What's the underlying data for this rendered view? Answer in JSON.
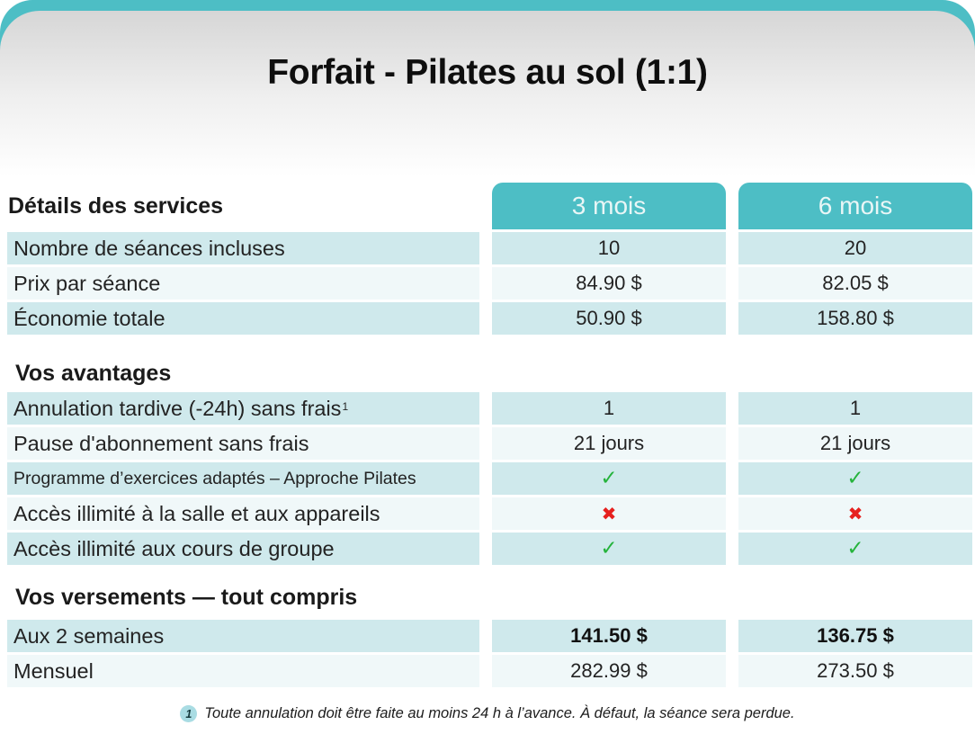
{
  "title": "Forfait - Pilates au sol (1:1)",
  "columns": [
    "3 mois",
    "6 mois"
  ],
  "sections": [
    {
      "heading": "Détails des services",
      "rows": [
        {
          "label": "Nombre de séances incluses",
          "values": [
            "10",
            "20"
          ]
        },
        {
          "label": "Prix par séance",
          "values": [
            "84.90 $",
            "82.05 $"
          ]
        },
        {
          "label": "Économie totale",
          "values": [
            "50.90 $",
            "158.80 $"
          ]
        }
      ]
    },
    {
      "heading": "Vos avantages",
      "rows": [
        {
          "label": "Annulation tardive (-24h) sans frais",
          "footnote_ref": "1",
          "values": [
            "1",
            "1"
          ]
        },
        {
          "label": "Pause d'abonnement sans frais",
          "values": [
            "21 jours",
            "21 jours"
          ]
        },
        {
          "label": "Programme d’exercices adaptés – Approche Pilates",
          "values": [
            "✓",
            "✓"
          ]
        },
        {
          "label": "Accès illimité à la salle et aux appareils",
          "values": [
            "✖",
            "✖"
          ]
        },
        {
          "label": "Accès illimité aux cours de groupe",
          "values": [
            "✓",
            "✓"
          ]
        }
      ]
    },
    {
      "heading": "Vos versements — tout compris",
      "rows": [
        {
          "label": "Aux 2 semaines",
          "values": [
            "141.50 $",
            "136.75 $"
          ]
        },
        {
          "label": "Mensuel",
          "values": [
            "282.99 $",
            "273.50 $"
          ]
        }
      ]
    }
  ],
  "footnote": {
    "marker": "1",
    "text": "Toute annulation doit être faite au moins 24 h à l’avance. À défaut, la séance sera perdue."
  },
  "icons": {
    "check": "✓",
    "cross": "✖"
  },
  "colors": {
    "accent_teal": "#4dbec5",
    "row_teal": "#cfe9ec",
    "row_pale": "#f0f8f9",
    "header_text": "#e9f6f6",
    "check_green": "#24b33b",
    "cross_red": "#e6201e",
    "footnote_circle": "#a9dce3"
  }
}
